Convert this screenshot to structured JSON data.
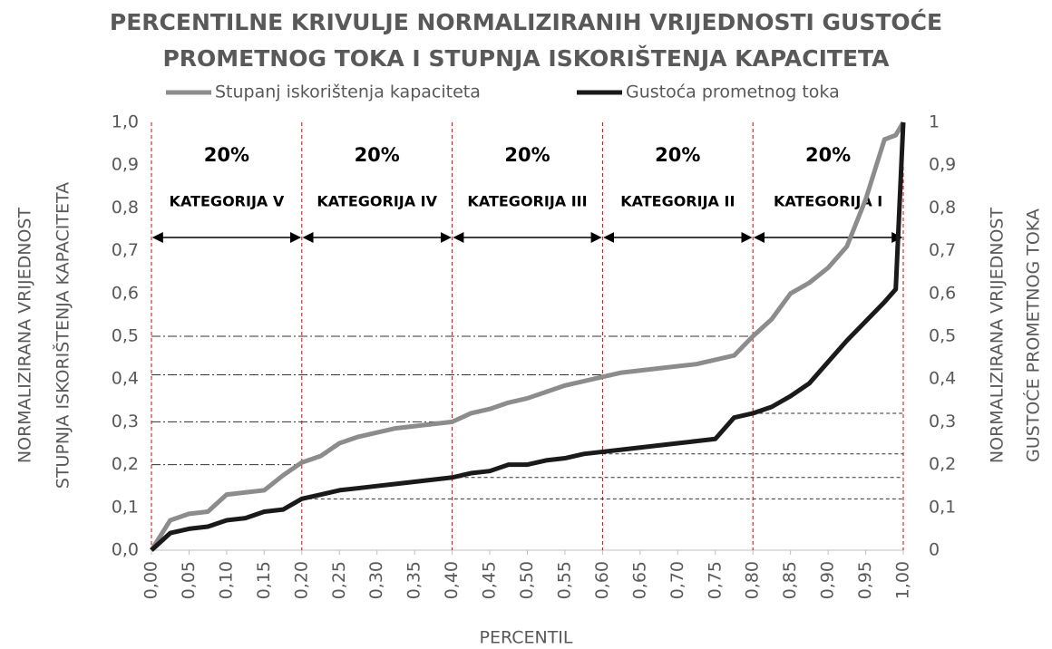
{
  "chart_data": {
    "type": "line",
    "title": [
      "PERCENTILNE KRIVULJE NORMALIZIRANIH VRIJEDNOSTI GUSTOĆE",
      "PROMETNOG TOKA I STUPNJA ISKORIŠTENJA KAPACITETA"
    ],
    "xlabel": "PERCENTIL",
    "ylabel": [
      "NORMALIZIRANA VRIJEDNOST",
      "STUPNJA ISKORIŠTENJA KAPACITETA"
    ],
    "y2label": [
      "NORMALIZIRANA VRIJEDNOST",
      "GUSTOĆE PROMETNOG TOKA"
    ],
    "x": [
      0,
      0.025,
      0.05,
      0.075,
      0.1,
      0.125,
      0.15,
      0.175,
      0.2,
      0.225,
      0.25,
      0.275,
      0.3,
      0.325,
      0.35,
      0.375,
      0.4,
      0.425,
      0.45,
      0.475,
      0.5,
      0.525,
      0.55,
      0.575,
      0.6,
      0.625,
      0.65,
      0.675,
      0.7,
      0.725,
      0.75,
      0.775,
      0.8,
      0.825,
      0.85,
      0.875,
      0.9,
      0.925,
      0.95,
      0.975,
      0.99,
      1.0
    ],
    "series": [
      {
        "name": "Stupanj iskorištenja kapaciteta",
        "color": "#8c8c8c",
        "values": [
          0,
          0.07,
          0.085,
          0.09,
          0.13,
          0.135,
          0.14,
          0.175,
          0.205,
          0.22,
          0.25,
          0.265,
          0.275,
          0.285,
          0.29,
          0.295,
          0.3,
          0.32,
          0.33,
          0.345,
          0.355,
          0.37,
          0.385,
          0.395,
          0.405,
          0.415,
          0.42,
          0.425,
          0.43,
          0.435,
          0.445,
          0.455,
          0.5,
          0.54,
          0.6,
          0.625,
          0.66,
          0.71,
          0.82,
          0.96,
          0.97,
          1.0
        ]
      },
      {
        "name": "Gustoća prometnog toka",
        "color": "#1a1a1a",
        "axis": "y2",
        "values": [
          0,
          0.04,
          0.05,
          0.055,
          0.07,
          0.075,
          0.09,
          0.095,
          0.12,
          0.13,
          0.14,
          0.145,
          0.15,
          0.155,
          0.16,
          0.165,
          0.17,
          0.18,
          0.185,
          0.2,
          0.2,
          0.21,
          0.215,
          0.225,
          0.23,
          0.235,
          0.24,
          0.245,
          0.25,
          0.255,
          0.26,
          0.31,
          0.32,
          0.335,
          0.36,
          0.39,
          0.44,
          0.49,
          0.535,
          0.58,
          0.61,
          1.0
        ]
      }
    ],
    "xlim": [
      0,
      1
    ],
    "xticks": [
      {
        "value": 0,
        "label": "0,00"
      },
      {
        "value": 0.05,
        "label": "0,05"
      },
      {
        "value": 0.1,
        "label": "0,10"
      },
      {
        "value": 0.15,
        "label": "0,15"
      },
      {
        "value": 0.2,
        "label": "0,20"
      },
      {
        "value": 0.25,
        "label": "0,25"
      },
      {
        "value": 0.3,
        "label": "0,30"
      },
      {
        "value": 0.35,
        "label": "0,35"
      },
      {
        "value": 0.4,
        "label": "0,40"
      },
      {
        "value": 0.45,
        "label": "0,45"
      },
      {
        "value": 0.5,
        "label": "0,50"
      },
      {
        "value": 0.55,
        "label": "0,55"
      },
      {
        "value": 0.6,
        "label": "0,60"
      },
      {
        "value": 0.65,
        "label": "0,65"
      },
      {
        "value": 0.7,
        "label": "0,70"
      },
      {
        "value": 0.75,
        "label": "0,75"
      },
      {
        "value": 0.8,
        "label": "0,80"
      },
      {
        "value": 0.85,
        "label": "0,85"
      },
      {
        "value": 0.9,
        "label": "0,90"
      },
      {
        "value": 0.95,
        "label": "0,95"
      },
      {
        "value": 1,
        "label": "1,00"
      }
    ],
    "ylim": [
      0,
      1
    ],
    "yticks": [
      {
        "value": 0,
        "label": "0,0"
      },
      {
        "value": 0.1,
        "label": "0,1"
      },
      {
        "value": 0.2,
        "label": "0,2"
      },
      {
        "value": 0.3,
        "label": "0,3"
      },
      {
        "value": 0.4,
        "label": "0,4"
      },
      {
        "value": 0.5,
        "label": "0,5"
      },
      {
        "value": 0.6,
        "label": "0,6"
      },
      {
        "value": 0.7,
        "label": "0,7"
      },
      {
        "value": 0.8,
        "label": "0,8"
      },
      {
        "value": 0.9,
        "label": "0,9"
      },
      {
        "value": 1,
        "label": "1,0"
      }
    ],
    "y2lim": [
      0,
      1
    ],
    "y2ticks": [
      0,
      {
        "value": 0.1,
        "label": "0,1"
      },
      {
        "value": 0.2,
        "label": "0,2"
      },
      {
        "value": 0.3,
        "label": "0,3"
      },
      {
        "value": 0.4,
        "label": "0,4"
      },
      {
        "value": 0.5,
        "label": "0,5"
      },
      {
        "value": 0.6,
        "label": "0,6"
      },
      {
        "value": 0.7,
        "label": "0,7"
      },
      {
        "value": 0.8,
        "label": "0,8"
      },
      {
        "value": 0.9,
        "label": "0,9"
      },
      1
    ],
    "segments": [
      {
        "label": "KATEGORIJA V",
        "share": "20%",
        "from": 0,
        "to": 0.2
      },
      {
        "label": "KATEGORIJA IV",
        "share": "20%",
        "from": 0.2,
        "to": 0.4
      },
      {
        "label": "KATEGORIJA III",
        "share": "20%",
        "from": 0.4,
        "to": 0.6
      },
      {
        "label": "KATEGORIJA II",
        "share": "20%",
        "from": 0.6,
        "to": 0.8
      },
      {
        "label": "KATEGORIJA I",
        "share": "20%",
        "from": 0.8,
        "to": 1
      }
    ],
    "v_lines": [
      0,
      0.2,
      0.4,
      0.6,
      0.8,
      1
    ],
    "h_lines_left": [
      {
        "y": 0.5,
        "x": 0.8
      },
      {
        "y": 0.41,
        "x": 0.6
      },
      {
        "y": 0.3,
        "x": 0.4
      },
      {
        "y": 0.2,
        "x": 0.2
      }
    ],
    "h_lines_right": [
      {
        "y": 0.32,
        "x": 0.8
      },
      {
        "y": 0.225,
        "x": 0.6
      },
      {
        "y": 0.17,
        "x": 0.4
      },
      {
        "y": 0.12,
        "x": 0.2
      }
    ]
  }
}
